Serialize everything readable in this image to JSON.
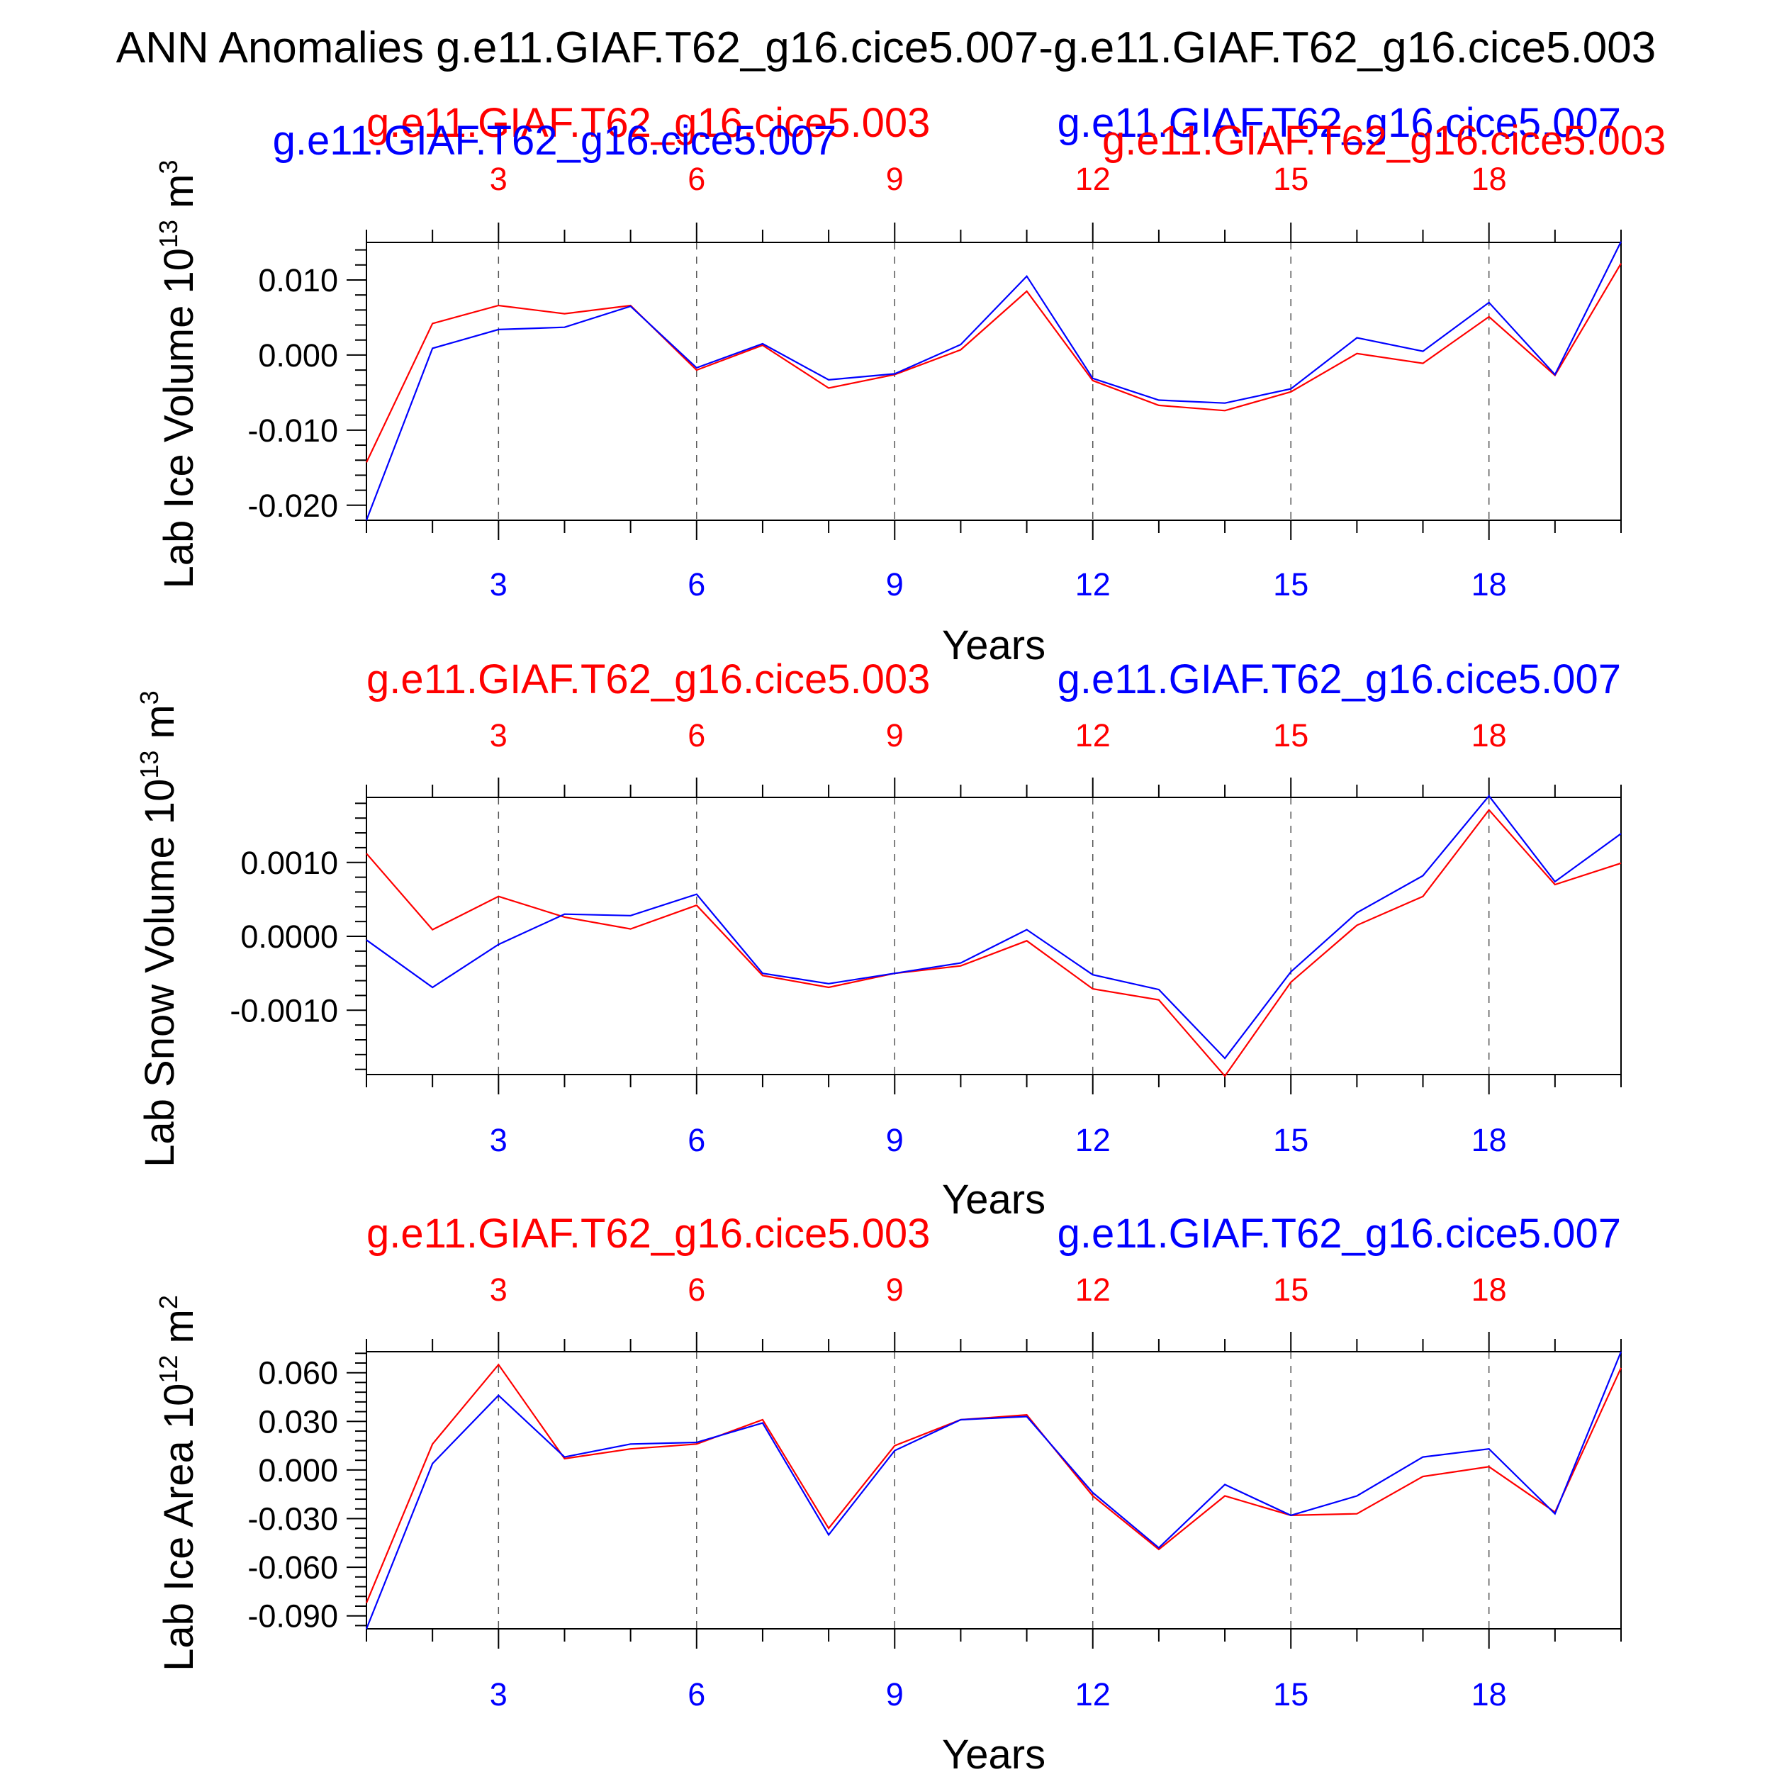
{
  "title": "ANN Anomalies g.e11.GIAF.T62_g16.cice5.007-g.e11.GIAF.T62_g16.cice5.003",
  "colors": {
    "case_a": "#ff0000",
    "case_b": "#0000ff"
  },
  "chart_data": [
    {
      "type": "line",
      "title": "",
      "xlabel": "Years",
      "ylabel": "Lab Ice Volume 10",
      "ylabel_exp": "13",
      "ylabel_unit": " m",
      "ylabel_unit_exp": "3",
      "xlim": [
        1,
        20
      ],
      "ylim": [
        -0.022,
        0.015
      ],
      "xticks": [
        3,
        6,
        9,
        12,
        15,
        18
      ],
      "xtick_labels": [
        "3",
        "6",
        "9",
        "12",
        "15",
        "18"
      ],
      "yticks": [
        -0.02,
        -0.01,
        0.0,
        0.01
      ],
      "ytick_labels": [
        "-0.020",
        "-0.010",
        "0.000",
        "0.010"
      ],
      "legend_texts": [
        "g.e11.GIAF.T62_g16.cice5.003",
        "g.e11.GIAF.T62_g16.cice5.007",
        "g.e11.GIAF.T62_g16.cice5.007",
        "g.e11.GIAF.T62_g16.cice5.003"
      ],
      "x": [
        1,
        2,
        3,
        4,
        5,
        6,
        7,
        8,
        9,
        10,
        11,
        12,
        13,
        14,
        15,
        16,
        17,
        18,
        19,
        20
      ],
      "series": [
        {
          "name": "g.e11.GIAF.T62_g16.cice5.003",
          "color": "#ff0000",
          "values": [
            -0.0143,
            0.0042,
            0.0066,
            0.0055,
            0.0066,
            -0.002,
            0.0013,
            -0.0044,
            -0.0026,
            0.0007,
            0.0085,
            -0.0034,
            -0.0067,
            -0.0074,
            -0.0049,
            0.0002,
            -0.0011,
            0.0051,
            -0.0027,
            0.0122
          ]
        },
        {
          "name": "g.e11.GIAF.T62_g16.cice5.007",
          "color": "#0000ff",
          "values": [
            -0.022,
            0.0009,
            0.0034,
            0.0037,
            0.0065,
            -0.0017,
            0.0015,
            -0.0033,
            -0.0025,
            0.0014,
            0.0105,
            -0.0031,
            -0.006,
            -0.0064,
            -0.0045,
            0.0023,
            0.0005,
            0.007,
            -0.0026,
            0.0151
          ]
        }
      ]
    },
    {
      "type": "line",
      "title": "",
      "xlabel": "Years",
      "ylabel": "Lab Snow Volume 10",
      "ylabel_exp": "13",
      "ylabel_unit": " m",
      "ylabel_unit_exp": "3",
      "xlim": [
        1,
        20
      ],
      "ylim": [
        -0.00187,
        0.00188
      ],
      "xticks": [
        3,
        6,
        9,
        12,
        15,
        18
      ],
      "xtick_labels": [
        "3",
        "6",
        "9",
        "12",
        "15",
        "18"
      ],
      "yticks": [
        -0.001,
        0.0,
        0.001
      ],
      "ytick_labels": [
        "-0.0010",
        "0.0000",
        "0.0010"
      ],
      "legend_texts": [
        "g.e11.GIAF.T62_g16.cice5.003",
        "g.e11.GIAF.T62_g16.cice5.007"
      ],
      "x": [
        1,
        2,
        3,
        4,
        5,
        6,
        7,
        8,
        9,
        10,
        11,
        12,
        13,
        14,
        15,
        16,
        17,
        18,
        19,
        20
      ],
      "series": [
        {
          "name": "g.e11.GIAF.T62_g16.cice5.003",
          "color": "#ff0000",
          "values": [
            0.00112,
            9e-05,
            0.00054,
            0.00026,
            0.0001,
            0.00042,
            -0.00053,
            -0.00069,
            -0.0005,
            -0.0004,
            -6e-05,
            -0.00071,
            -0.00086,
            -0.00189,
            -0.00062,
            0.00015,
            0.00054,
            0.00171,
            0.0007,
            0.00099
          ]
        },
        {
          "name": "g.e11.GIAF.T62_g16.cice5.007",
          "color": "#0000ff",
          "values": [
            -5e-05,
            -0.00069,
            -0.00011,
            0.0003,
            0.00028,
            0.00057,
            -0.0005,
            -0.00064,
            -0.0005,
            -0.00036,
            9e-05,
            -0.00052,
            -0.00072,
            -0.00165,
            -0.00048,
            0.00032,
            0.00082,
            0.0019,
            0.00074,
            0.00139
          ]
        }
      ]
    },
    {
      "type": "line",
      "title": "",
      "xlabel": "Years",
      "ylabel": "Lab Ice Area 10",
      "ylabel_exp": "12",
      "ylabel_unit": " m",
      "ylabel_unit_exp": "2",
      "xlim": [
        1,
        20
      ],
      "ylim": [
        -0.098,
        0.073
      ],
      "xticks": [
        3,
        6,
        9,
        12,
        15,
        18
      ],
      "xtick_labels": [
        "3",
        "6",
        "9",
        "12",
        "15",
        "18"
      ],
      "yticks": [
        -0.09,
        -0.06,
        -0.03,
        0.0,
        0.03,
        0.06
      ],
      "ytick_labels": [
        "-0.090",
        "-0.060",
        "-0.030",
        "0.000",
        "0.030",
        "0.060"
      ],
      "legend_texts": [
        "g.e11.GIAF.T62_g16.cice5.003",
        "g.e11.GIAF.T62_g16.cice5.007"
      ],
      "x": [
        1,
        2,
        3,
        4,
        5,
        6,
        7,
        8,
        9,
        10,
        11,
        12,
        13,
        14,
        15,
        16,
        17,
        18,
        19,
        20
      ],
      "series": [
        {
          "name": "g.e11.GIAF.T62_g16.cice5.003",
          "color": "#ff0000",
          "values": [
            -0.082,
            0.016,
            0.065,
            0.007,
            0.013,
            0.016,
            0.031,
            -0.036,
            0.015,
            0.031,
            0.034,
            -0.016,
            -0.049,
            -0.016,
            -0.028,
            -0.027,
            -0.004,
            0.002,
            -0.026,
            0.063
          ]
        },
        {
          "name": "g.e11.GIAF.T62_g16.cice5.007",
          "color": "#0000ff",
          "values": [
            -0.098,
            0.004,
            0.046,
            0.008,
            0.016,
            0.017,
            0.029,
            -0.04,
            0.012,
            0.031,
            0.033,
            -0.014,
            -0.048,
            -0.009,
            -0.028,
            -0.016,
            0.008,
            0.013,
            -0.027,
            0.073
          ]
        }
      ]
    }
  ]
}
